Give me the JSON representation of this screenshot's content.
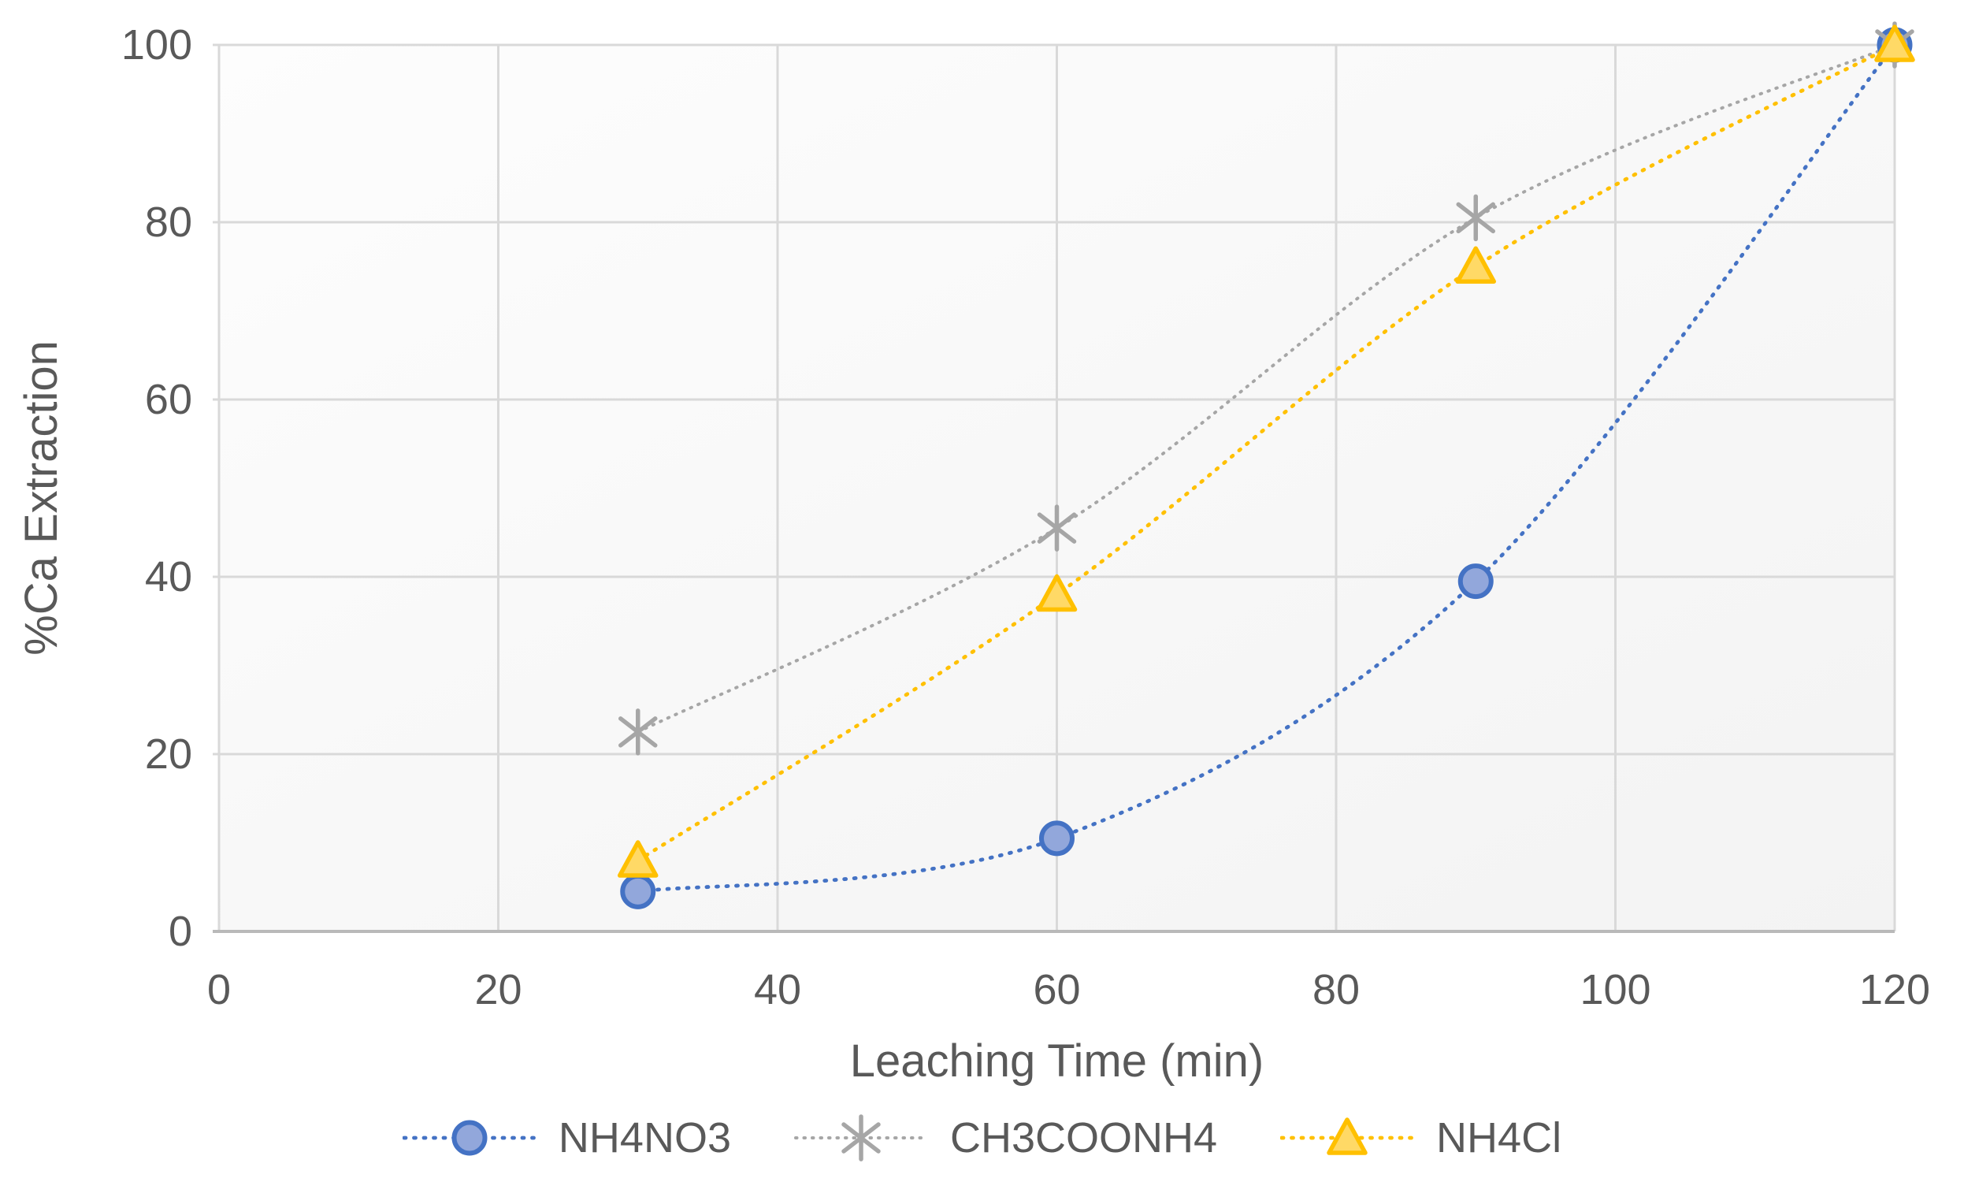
{
  "chart_data": {
    "type": "line",
    "subtype": "smooth-dotted-with-markers",
    "title": "",
    "xlabel": "Leaching Time (min)",
    "ylabel": "%Ca Extraction",
    "x": [
      30,
      60,
      90,
      120
    ],
    "series": [
      {
        "name": "NH4NO3",
        "marker": "circle",
        "color": "#4472C4",
        "marker_fill": "#92A7DB",
        "values": [
          4.5,
          10.5,
          39.5,
          100
        ]
      },
      {
        "name": "CH3COONH4",
        "marker": "asterisk",
        "color": "#A6A6A6",
        "marker_fill": "#A6A6A6",
        "values": [
          22.5,
          45.5,
          80.5,
          100
        ]
      },
      {
        "name": "NH4Cl",
        "marker": "triangle",
        "color": "#FFC000",
        "marker_fill": "#FFD966",
        "values": [
          8,
          38,
          75,
          100
        ]
      }
    ],
    "xlim": [
      0,
      120
    ],
    "ylim": [
      0,
      100
    ],
    "x_ticks": [
      0,
      20,
      40,
      60,
      80,
      100,
      120
    ],
    "y_ticks": [
      0,
      20,
      40,
      60,
      80,
      100
    ],
    "grid": true,
    "legend_position": "bottom"
  },
  "style": {
    "plot_bg_top": "#FDFDFD",
    "plot_bg_bottom": "#F3F3F3",
    "grid_color": "#D9D9D9",
    "axis_line_color": "#B9B9B9",
    "tick_label_color": "#595959",
    "axis_title_color": "#595959",
    "legend_label_color": "#595959"
  }
}
